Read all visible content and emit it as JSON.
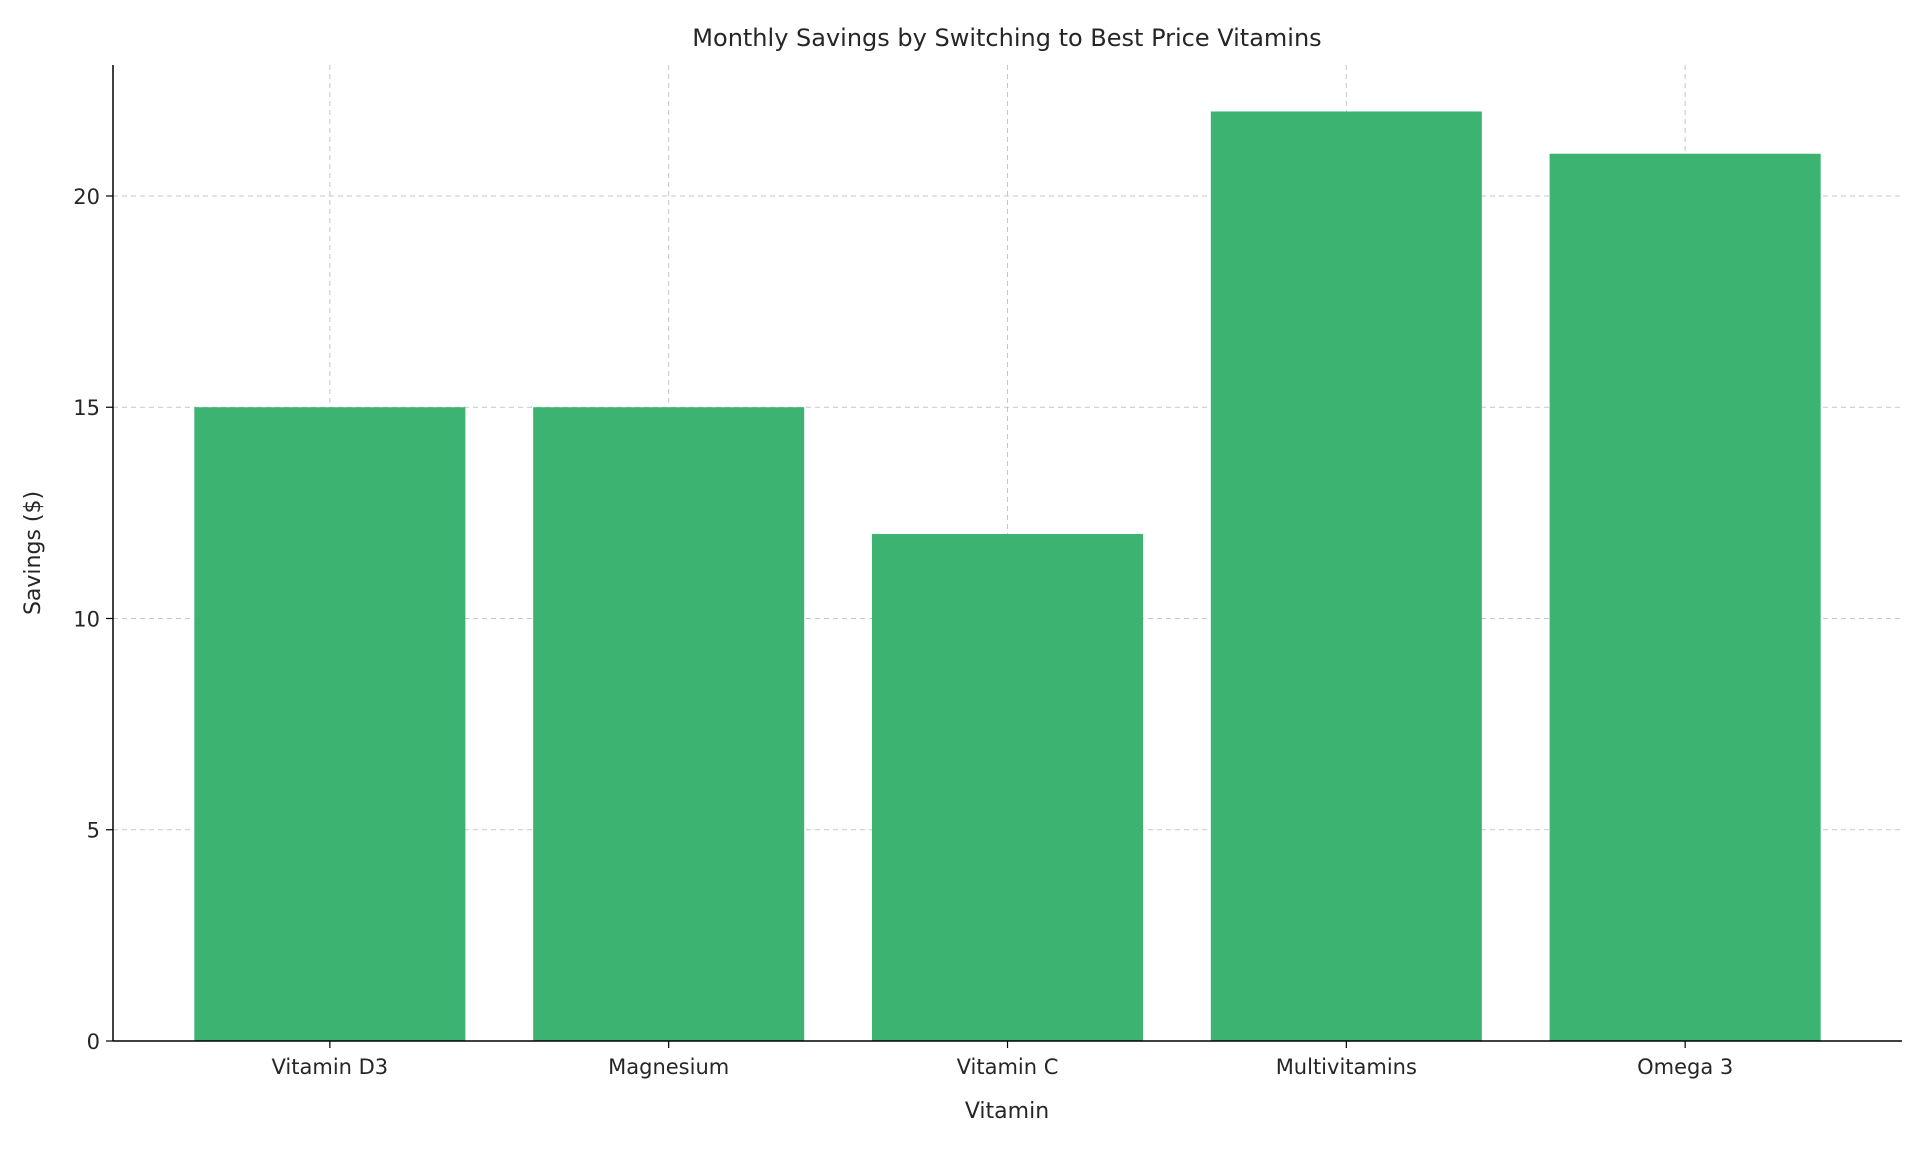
{
  "chart_data": {
    "type": "bar",
    "title": "Monthly Savings by Switching to Best Price Vitamins",
    "xlabel": "Vitamin",
    "ylabel": "Savings ($)",
    "categories": [
      "Vitamin D3",
      "Magnesium",
      "Vitamin C",
      "Multivitamins",
      "Omega 3"
    ],
    "values": [
      15,
      15,
      12,
      22,
      21
    ],
    "ylim": [
      0,
      23.1
    ],
    "yticks": [
      0,
      5,
      10,
      15,
      20
    ],
    "grid": true,
    "bar_color": "#3cb371"
  }
}
